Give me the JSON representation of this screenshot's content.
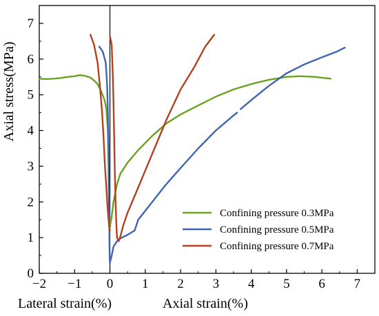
{
  "chart_data": {
    "type": "line",
    "title": "",
    "xlabel_left": "Lateral strain(%)",
    "xlabel_right": "Axial strain(%)",
    "ylabel": "Axial stress(MPa)",
    "xlim": [
      -2,
      7.5
    ],
    "ylim": [
      0,
      7.5
    ],
    "x_ticks": [
      -2,
      -1,
      0,
      1,
      2,
      3,
      4,
      5,
      6,
      7
    ],
    "x_tick_labels": [
      "−2",
      "−1",
      "0",
      "1",
      "2",
      "3",
      "4",
      "5",
      "6",
      "7"
    ],
    "y_ticks": [
      0,
      1,
      2,
      3,
      4,
      5,
      6,
      7
    ],
    "y_tick_labels": [
      "0",
      "1",
      "2",
      "3",
      "4",
      "5",
      "6",
      "7"
    ],
    "legend_position": "bottom-right",
    "grid": false,
    "series": [
      {
        "name": "Confining pressure 0.3MPa",
        "color": "#6aa121",
        "segments": [
          [
            [
              -2.0,
              5.45
            ],
            [
              -1.8,
              5.44
            ],
            [
              -1.6,
              5.45
            ],
            [
              -1.4,
              5.47
            ],
            [
              -1.2,
              5.5
            ],
            [
              -1.0,
              5.52
            ],
            [
              -0.85,
              5.55
            ],
            [
              -0.7,
              5.53
            ],
            [
              -0.55,
              5.48
            ],
            [
              -0.45,
              5.4
            ],
            [
              -0.35,
              5.3
            ],
            [
              -0.25,
              5.1
            ],
            [
              -0.15,
              4.85
            ],
            [
              -0.1,
              4.6
            ],
            [
              -0.06,
              4.0
            ],
            [
              -0.04,
              3.0
            ],
            [
              -0.02,
              1.6
            ],
            [
              0.0,
              1.3
            ]
          ],
          [
            [
              0.0,
              1.3
            ],
            [
              0.05,
              1.6
            ],
            [
              0.1,
              2.0
            ],
            [
              0.2,
              2.5
            ],
            [
              0.3,
              2.8
            ],
            [
              0.5,
              3.1
            ],
            [
              0.8,
              3.45
            ],
            [
              1.2,
              3.85
            ],
            [
              1.6,
              4.2
            ],
            [
              2.0,
              4.45
            ],
            [
              2.5,
              4.7
            ],
            [
              3.0,
              4.95
            ],
            [
              3.5,
              5.15
            ],
            [
              4.0,
              5.3
            ],
            [
              4.5,
              5.42
            ],
            [
              5.0,
              5.5
            ],
            [
              5.4,
              5.52
            ],
            [
              5.8,
              5.5
            ],
            [
              6.25,
              5.45
            ]
          ]
        ]
      },
      {
        "name": "Confining pressure 0.5MPa",
        "color": "#3f63b3",
        "segments": [
          [
            [
              -0.3,
              6.35
            ],
            [
              -0.2,
              6.2
            ],
            [
              -0.12,
              5.9
            ],
            [
              -0.08,
              5.3
            ],
            [
              -0.06,
              4.6
            ],
            [
              -0.04,
              3.5
            ],
            [
              -0.03,
              2.5
            ],
            [
              -0.02,
              1.5
            ],
            [
              -0.01,
              0.6
            ],
            [
              0.0,
              0.3
            ]
          ],
          [
            [
              0.0,
              0.3
            ],
            [
              0.05,
              0.5
            ],
            [
              0.1,
              0.75
            ],
            [
              0.2,
              0.9
            ],
            [
              0.3,
              0.98
            ],
            [
              0.5,
              1.08
            ],
            [
              0.7,
              1.2
            ],
            [
              0.8,
              1.5
            ],
            [
              1.2,
              2.0
            ],
            [
              1.6,
              2.5
            ],
            [
              2.0,
              2.95
            ],
            [
              2.5,
              3.5
            ],
            [
              3.0,
              4.0
            ],
            [
              3.5,
              4.42
            ],
            [
              3.6,
              4.5
            ]
          ],
          [
            [
              3.7,
              4.6
            ],
            [
              4.0,
              4.85
            ],
            [
              4.5,
              5.25
            ],
            [
              5.0,
              5.6
            ],
            [
              5.5,
              5.85
            ],
            [
              6.0,
              6.05
            ],
            [
              6.4,
              6.2
            ],
            [
              6.65,
              6.32
            ]
          ]
        ]
      },
      {
        "name": "Confining pressure 0.7MPa",
        "color": "#b3401f",
        "segments": [
          [
            [
              -0.55,
              6.68
            ],
            [
              -0.45,
              6.4
            ],
            [
              -0.35,
              5.9
            ],
            [
              -0.28,
              5.2
            ],
            [
              -0.22,
              4.5
            ],
            [
              -0.18,
              3.8
            ],
            [
              -0.14,
              3.0
            ],
            [
              -0.1,
              2.4
            ],
            [
              -0.07,
              1.9
            ],
            [
              -0.04,
              1.5
            ],
            [
              -0.02,
              1.3
            ],
            [
              0.0,
              1.2
            ]
          ],
          [
            [
              0.0,
              6.65
            ],
            [
              0.05,
              6.4
            ],
            [
              0.08,
              5.6
            ],
            [
              0.1,
              4.8
            ],
            [
              0.12,
              3.8
            ],
            [
              0.14,
              2.8
            ],
            [
              0.16,
              2.0
            ],
            [
              0.18,
              1.4
            ],
            [
              0.2,
              1.0
            ],
            [
              0.25,
              0.9
            ],
            [
              0.3,
              1.05
            ],
            [
              0.38,
              1.35
            ],
            [
              0.5,
              1.7
            ],
            [
              0.8,
              2.4
            ],
            [
              1.2,
              3.35
            ],
            [
              1.6,
              4.3
            ],
            [
              2.0,
              5.15
            ],
            [
              2.4,
              5.8
            ],
            [
              2.7,
              6.35
            ],
            [
              2.95,
              6.68
            ]
          ]
        ]
      }
    ]
  }
}
